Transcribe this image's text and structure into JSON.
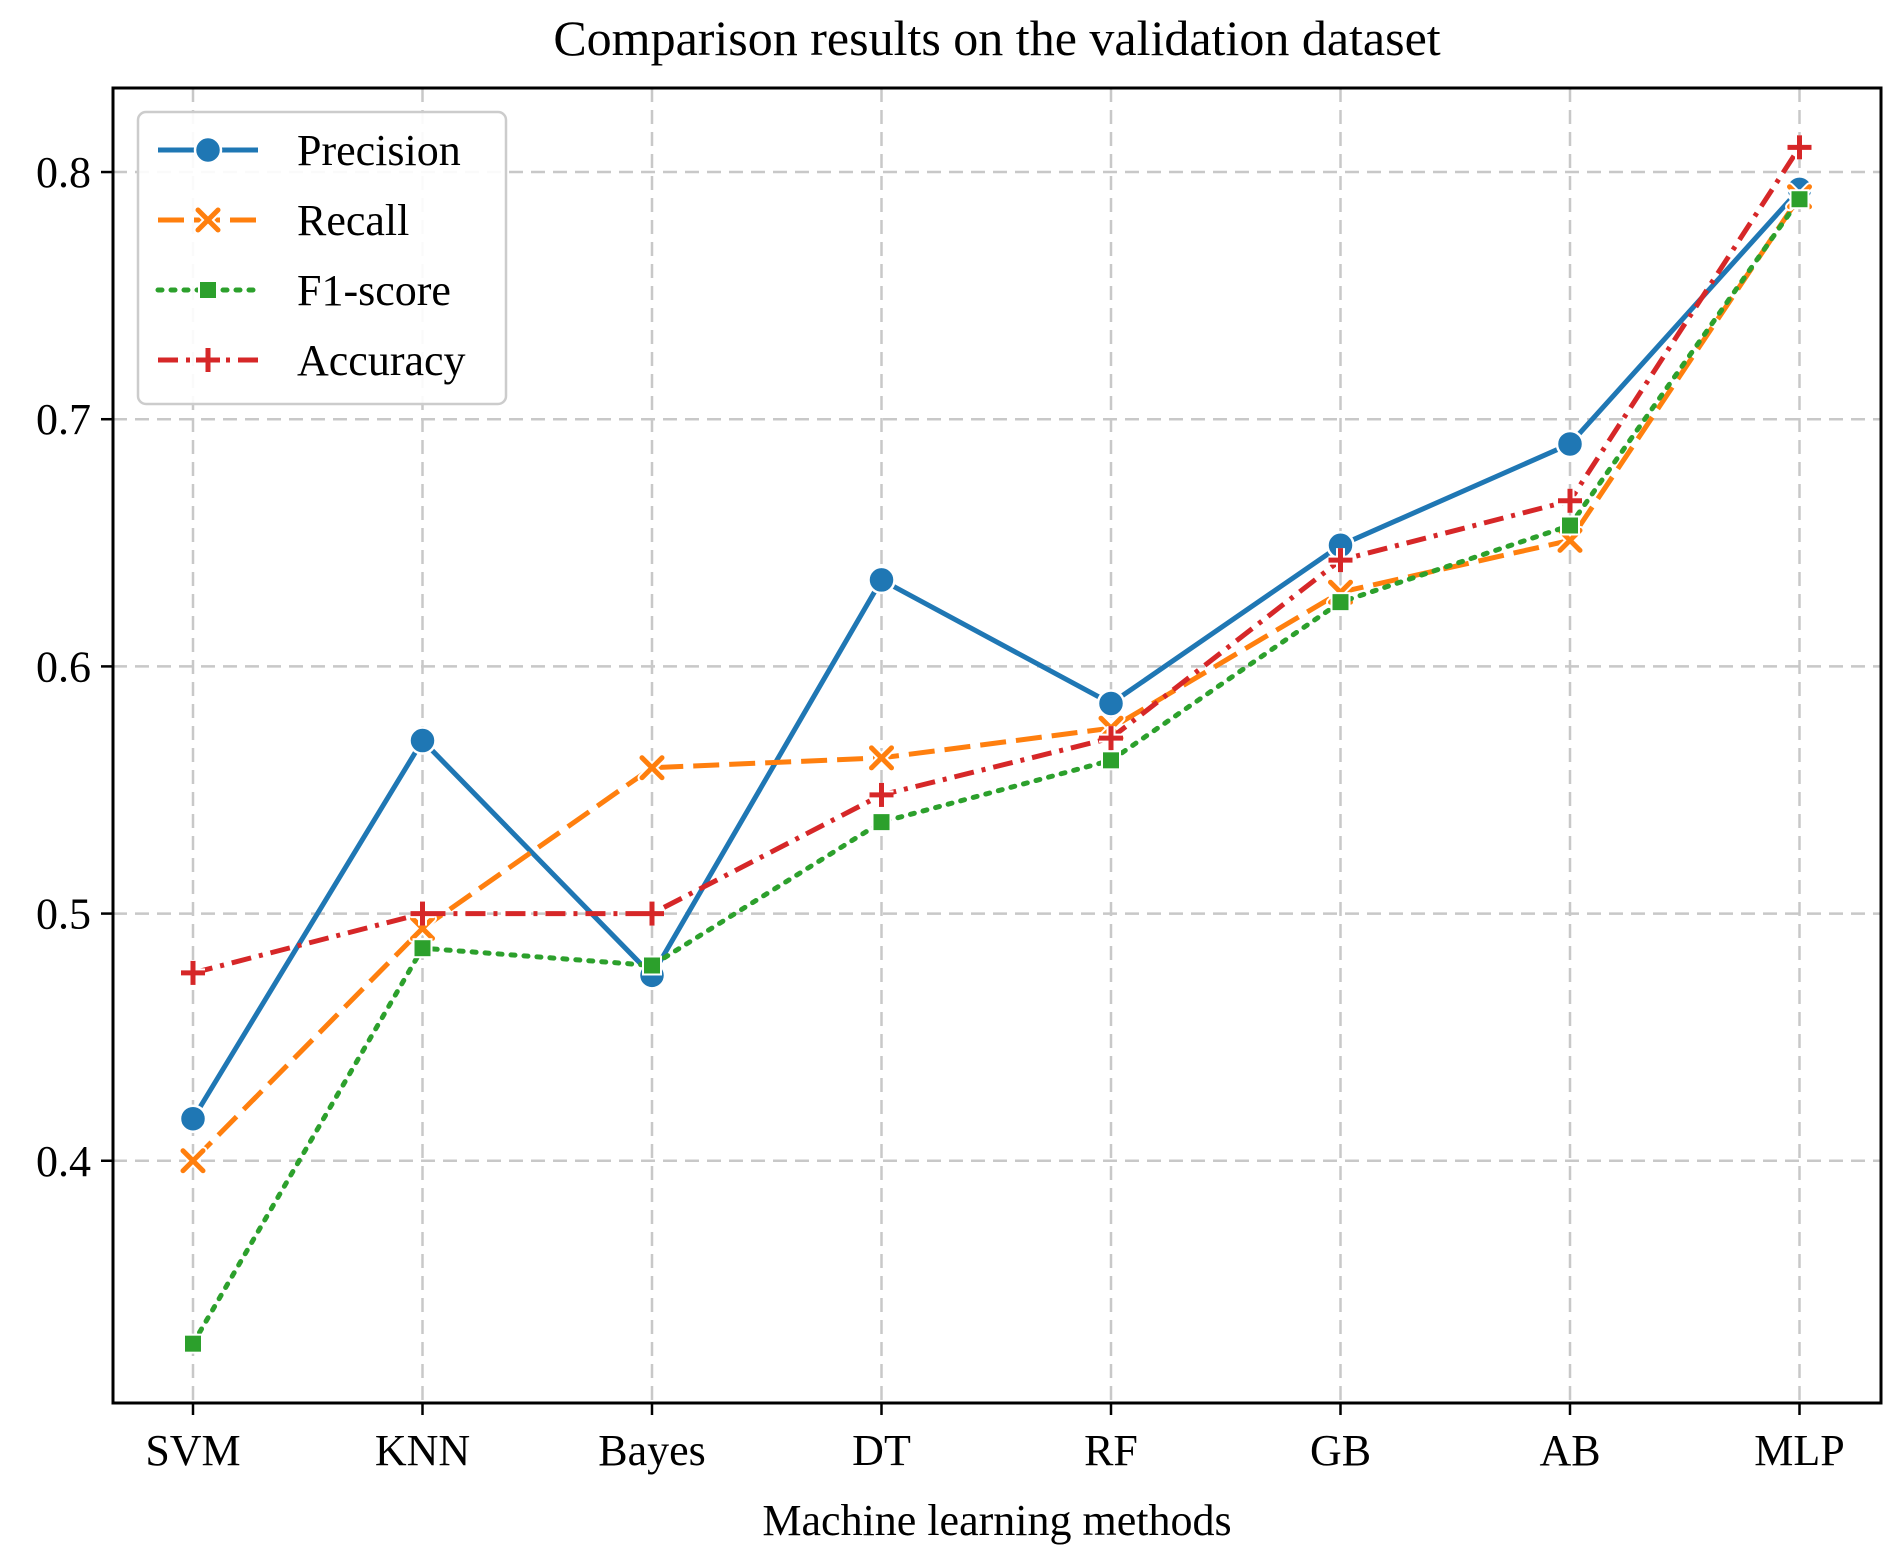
{
  "chart_data": {
    "type": "line",
    "title": "Comparison results on the validation dataset",
    "xlabel": "Machine learning methods",
    "ylabel": "",
    "categories": [
      "SVM",
      "KNN",
      "Bayes",
      "DT",
      "RF",
      "GB",
      "AB",
      "MLP"
    ],
    "y_ticks": [
      0.4,
      0.5,
      0.6,
      0.7,
      0.8
    ],
    "y_tick_labels": [
      "0.4",
      "0.5",
      "0.6",
      "0.7",
      "0.8"
    ],
    "ylim": [
      0.302,
      0.834
    ],
    "grid": true,
    "legend_position": "top-left",
    "series": [
      {
        "name": "Precision",
        "color": "#1f77b4",
        "line_style": "solid",
        "marker": "circle",
        "values": [
          0.417,
          0.57,
          0.475,
          0.635,
          0.585,
          0.649,
          0.69,
          0.793
        ]
      },
      {
        "name": "Recall",
        "color": "#ff7f0e",
        "line_style": "dashed",
        "marker": "x",
        "values": [
          0.4,
          0.494,
          0.559,
          0.563,
          0.575,
          0.63,
          0.651,
          0.79
        ]
      },
      {
        "name": "F1-score",
        "color": "#2ca02c",
        "line_style": "dotted",
        "marker": "square",
        "values": [
          0.326,
          0.486,
          0.479,
          0.537,
          0.562,
          0.626,
          0.657,
          0.789
        ]
      },
      {
        "name": "Accuracy",
        "color": "#d62728",
        "line_style": "dashdot",
        "marker": "plus",
        "values": [
          0.476,
          0.5,
          0.5,
          0.548,
          0.571,
          0.643,
          0.667,
          0.81
        ]
      }
    ]
  }
}
